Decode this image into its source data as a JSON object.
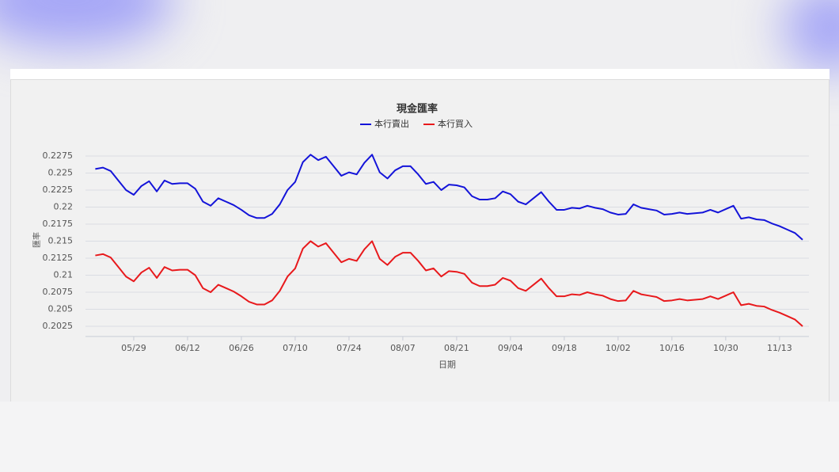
{
  "chart_data": {
    "type": "line",
    "title": "現金匯率",
    "x_label": "日期",
    "y_label": "匯率",
    "categories": [
      null,
      null,
      null,
      null,
      null,
      "05/29",
      null,
      null,
      null,
      null,
      null,
      null,
      "06/12",
      null,
      null,
      null,
      null,
      null,
      null,
      "06/26",
      null,
      null,
      null,
      null,
      null,
      null,
      "07/10",
      null,
      null,
      null,
      null,
      null,
      null,
      "07/24",
      null,
      null,
      null,
      null,
      null,
      null,
      "08/07",
      null,
      null,
      null,
      null,
      null,
      null,
      "08/21",
      null,
      null,
      null,
      null,
      null,
      null,
      "09/04",
      null,
      null,
      null,
      null,
      null,
      null,
      "09/18",
      null,
      null,
      null,
      null,
      null,
      null,
      "10/02",
      null,
      null,
      null,
      null,
      null,
      null,
      "10/16",
      null,
      null,
      null,
      null,
      null,
      null,
      "10/30",
      null,
      null,
      null,
      null,
      null,
      null,
      "11/13",
      null,
      null,
      null
    ],
    "series": [
      {
        "name": "本行賣出",
        "color": "#1414d9",
        "values": [
          0.2256,
          0.2258,
          0.2253,
          0.2239,
          0.2225,
          0.2218,
          0.2231,
          0.2238,
          0.2223,
          0.2239,
          0.2234,
          0.2235,
          0.2235,
          0.2227,
          0.2208,
          0.2202,
          0.2213,
          0.2208,
          0.2203,
          0.2196,
          0.2188,
          0.2184,
          0.2184,
          0.219,
          0.2204,
          0.2225,
          0.2237,
          0.2266,
          0.2277,
          0.2269,
          0.2274,
          0.226,
          0.2246,
          0.2251,
          0.2248,
          0.2265,
          0.2277,
          0.2251,
          0.2242,
          0.2254,
          0.226,
          0.226,
          0.2248,
          0.2234,
          0.2237,
          0.2225,
          0.2233,
          0.2232,
          0.2229,
          0.2216,
          0.2211,
          0.2211,
          0.2213,
          0.2223,
          0.2219,
          0.2208,
          0.2204,
          0.2213,
          0.2222,
          0.2208,
          0.2196,
          0.2196,
          0.2199,
          0.2198,
          0.2202,
          0.2199,
          0.2197,
          0.2192,
          0.2189,
          0.219,
          0.2204,
          0.2199,
          0.2197,
          0.2195,
          0.2189,
          0.219,
          0.2192,
          0.219,
          0.2191,
          0.2192,
          0.2196,
          0.2192,
          0.2197,
          0.2202,
          0.2183,
          0.2185,
          0.2182,
          0.2181,
          0.2176,
          0.2172,
          0.2167,
          0.2162,
          0.2152
        ]
      },
      {
        "name": "本行買入",
        "color": "#e8191c",
        "values": [
          0.2129,
          0.2131,
          0.2126,
          0.2112,
          0.2098,
          0.2091,
          0.2104,
          0.2111,
          0.2096,
          0.2112,
          0.2107,
          0.2108,
          0.2108,
          0.21,
          0.2081,
          0.2075,
          0.2086,
          0.2081,
          0.2076,
          0.2069,
          0.2061,
          0.2057,
          0.2057,
          0.2063,
          0.2077,
          0.2098,
          0.211,
          0.2139,
          0.215,
          0.2142,
          0.2147,
          0.2133,
          0.2119,
          0.2124,
          0.2121,
          0.2138,
          0.215,
          0.2124,
          0.2115,
          0.2127,
          0.2133,
          0.2133,
          0.2121,
          0.2107,
          0.211,
          0.2098,
          0.2106,
          0.2105,
          0.2102,
          0.2089,
          0.2084,
          0.2084,
          0.2086,
          0.2096,
          0.2092,
          0.2081,
          0.2077,
          0.2086,
          0.2095,
          0.2081,
          0.2069,
          0.2069,
          0.2072,
          0.2071,
          0.2075,
          0.2072,
          0.207,
          0.2065,
          0.2062,
          0.2063,
          0.2077,
          0.2072,
          0.207,
          0.2068,
          0.2062,
          0.2063,
          0.2065,
          0.2063,
          0.2064,
          0.2065,
          0.2069,
          0.2065,
          0.207,
          0.2075,
          0.2056,
          0.2058,
          0.2055,
          0.2054,
          0.2049,
          0.2045,
          0.204,
          0.2035,
          0.2025
        ]
      }
    ],
    "ylim": [
      0.201,
      0.2285
    ],
    "yticks": [
      0.2025,
      0.205,
      0.2075,
      0.21,
      0.2125,
      0.215,
      0.2175,
      0.22,
      0.2225,
      0.225,
      0.2275
    ],
    "grid": true,
    "legend": "top"
  }
}
